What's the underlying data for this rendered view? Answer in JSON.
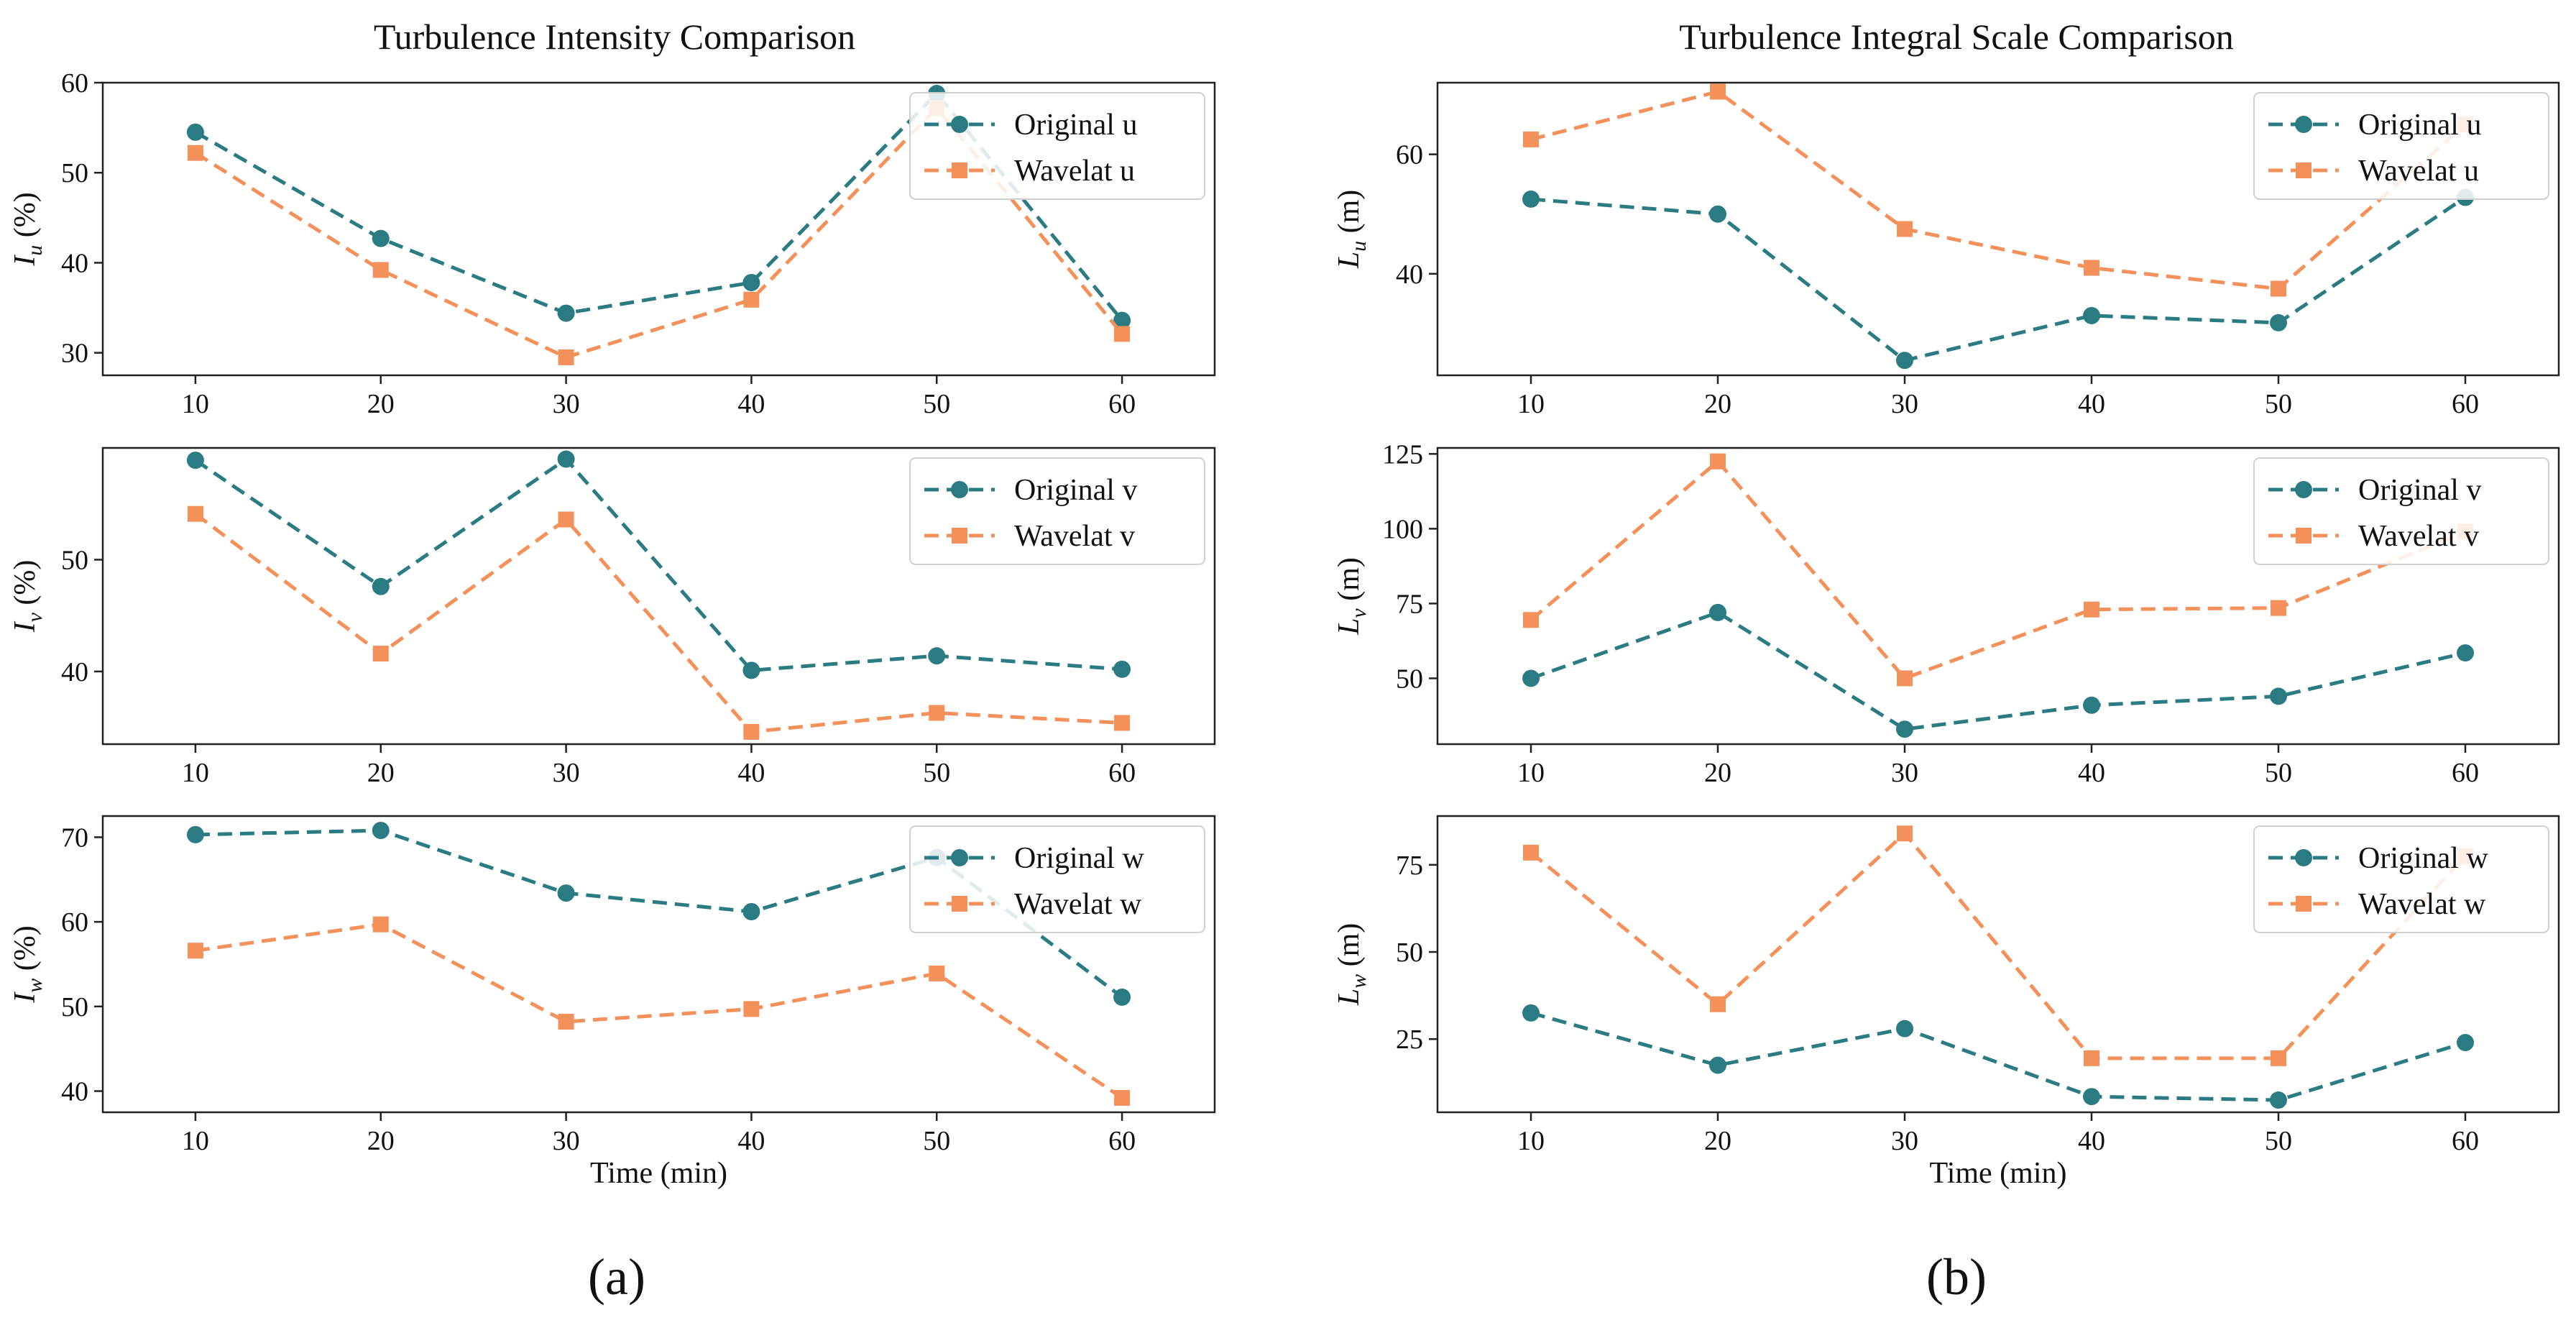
{
  "colors": {
    "original": "#2a7c82",
    "wavelet": "#f4915a",
    "axis": "#222222"
  },
  "panel_labels": {
    "a": "(a)",
    "b": "(b)"
  },
  "chart_data": [
    {
      "type": "line",
      "id": "iu",
      "title": "Turbulence Intensity Comparison",
      "xlabel": "",
      "ylabel": "I",
      "ylabel_sub": "u",
      "ylabel_unit": "(%)",
      "x": [
        10,
        20,
        30,
        40,
        50,
        60
      ],
      "xlim": [
        5,
        65
      ],
      "ylim": [
        27.5,
        60
      ],
      "yticks": [
        30,
        40,
        50,
        60
      ],
      "legend_position": "top-right",
      "series": [
        {
          "name": "Original u",
          "style": "original",
          "values": [
            54.5,
            42.7,
            34.4,
            37.8,
            58.8,
            33.6
          ]
        },
        {
          "name": "Wavelat u",
          "style": "wavelet",
          "values": [
            52.2,
            39.2,
            29.5,
            35.9,
            57.2,
            32.1
          ]
        }
      ]
    },
    {
      "type": "line",
      "id": "iv",
      "xlabel": "",
      "ylabel": "I",
      "ylabel_sub": "v",
      "ylabel_unit": "(%)",
      "x": [
        10,
        20,
        30,
        40,
        50,
        60
      ],
      "xlim": [
        5,
        65
      ],
      "ylim": [
        33.5,
        60
      ],
      "yticks": [
        40,
        50
      ],
      "legend_position": "top-right",
      "series": [
        {
          "name": "Original v",
          "style": "original",
          "values": [
            58.9,
            47.6,
            59.0,
            40.1,
            41.4,
            40.2
          ]
        },
        {
          "name": "Wavelat v",
          "style": "wavelet",
          "values": [
            54.1,
            41.6,
            53.6,
            34.6,
            36.3,
            35.4
          ]
        }
      ]
    },
    {
      "type": "line",
      "id": "iw",
      "xlabel": "Time (min)",
      "ylabel": "I",
      "ylabel_sub": "w",
      "ylabel_unit": "(%)",
      "x": [
        10,
        20,
        30,
        40,
        50,
        60
      ],
      "xlim": [
        5,
        65
      ],
      "ylim": [
        37.5,
        72.5
      ],
      "yticks": [
        40,
        50,
        60,
        70
      ],
      "legend_position": "top-right",
      "series": [
        {
          "name": "Original w",
          "style": "original",
          "values": [
            70.3,
            70.8,
            63.4,
            61.2,
            67.6,
            51.1
          ]
        },
        {
          "name": "Wavelat w",
          "style": "wavelet",
          "values": [
            56.6,
            59.7,
            48.2,
            49.7,
            53.9,
            39.2
          ]
        }
      ]
    },
    {
      "type": "line",
      "id": "lu",
      "title": "Turbulence Integral Scale Comparison",
      "xlabel": "",
      "ylabel": "L",
      "ylabel_sub": "u",
      "ylabel_unit": "(m)",
      "x": [
        10,
        20,
        30,
        40,
        50,
        60
      ],
      "xlim": [
        5,
        65
      ],
      "ylim": [
        23,
        72
      ],
      "yticks": [
        40,
        60
      ],
      "legend_position": "top-right",
      "series": [
        {
          "name": "Original u",
          "style": "original",
          "values": [
            52.5,
            50.0,
            25.5,
            33.0,
            31.8,
            52.8
          ]
        },
        {
          "name": "Wavelat u",
          "style": "wavelet",
          "values": [
            62.5,
            70.5,
            47.5,
            41.0,
            37.5,
            65.0
          ]
        }
      ]
    },
    {
      "type": "line",
      "id": "lv",
      "xlabel": "",
      "ylabel": "L",
      "ylabel_sub": "v",
      "ylabel_unit": "(m)",
      "x": [
        10,
        20,
        30,
        40,
        50,
        60
      ],
      "xlim": [
        5,
        65
      ],
      "ylim": [
        28,
        127
      ],
      "yticks": [
        50,
        75,
        100,
        125
      ],
      "legend_position": "top-right",
      "series": [
        {
          "name": "Original v",
          "style": "original",
          "values": [
            50.0,
            72.0,
            33.0,
            41.0,
            44.0,
            58.5
          ]
        },
        {
          "name": "Wavelat v",
          "style": "wavelet",
          "values": [
            69.5,
            122.5,
            50.0,
            73.0,
            73.5,
            99.0
          ]
        }
      ]
    },
    {
      "type": "line",
      "id": "lw",
      "xlabel": "Time (min)",
      "ylabel": "L",
      "ylabel_sub": "w",
      "ylabel_unit": "(m)",
      "x": [
        10,
        20,
        30,
        40,
        50,
        60
      ],
      "xlim": [
        5,
        65
      ],
      "ylim": [
        4,
        89
      ],
      "yticks": [
        25,
        50,
        75
      ],
      "legend_position": "top-right",
      "series": [
        {
          "name": "Original w",
          "style": "original",
          "values": [
            32.5,
            17.5,
            28.0,
            8.5,
            7.5,
            24.0
          ]
        },
        {
          "name": "Wavelat w",
          "style": "wavelet",
          "values": [
            78.5,
            35.0,
            84.0,
            19.5,
            19.5,
            77.5
          ]
        }
      ]
    }
  ]
}
